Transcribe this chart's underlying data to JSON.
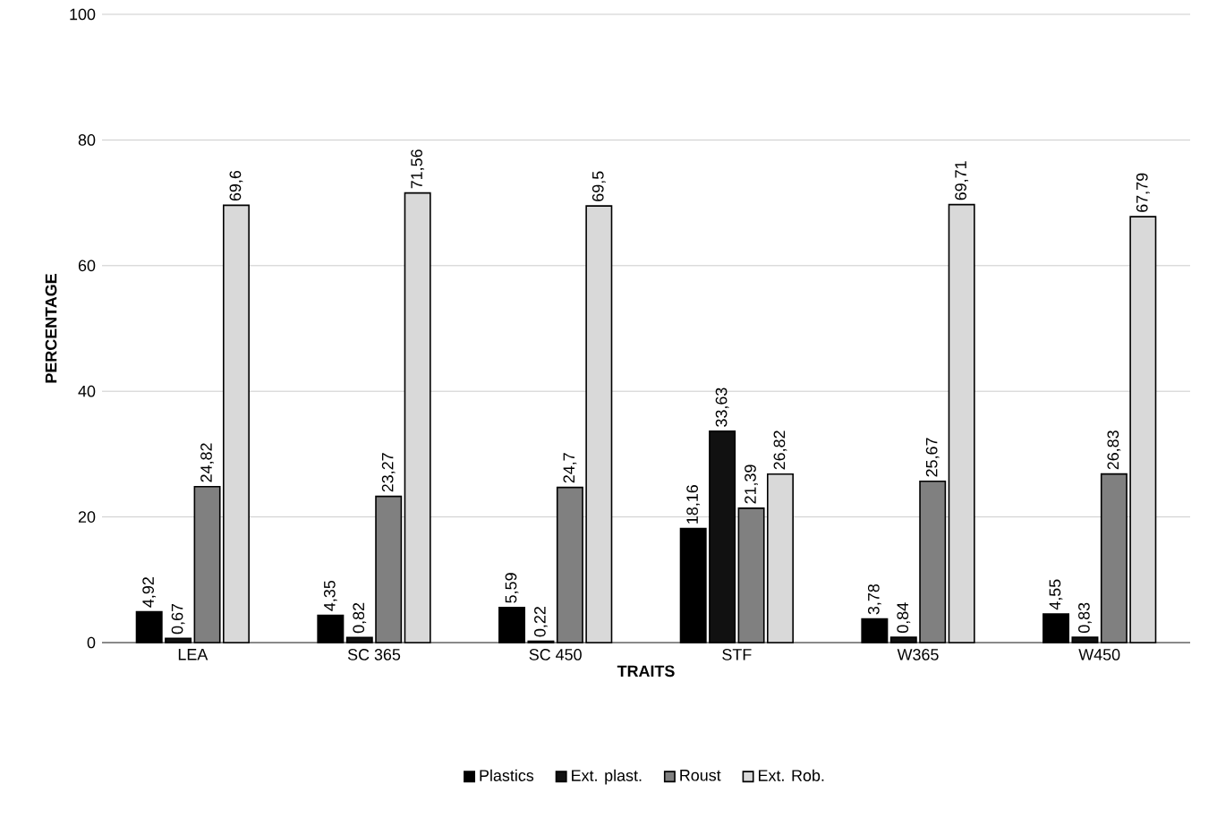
{
  "chart_data": {
    "type": "bar",
    "xlabel": "TRAITS",
    "ylabel": "PERCENTAGE",
    "categories": [
      "LEA",
      "SC 365",
      "SC 450",
      "STF",
      "W365",
      "W450"
    ],
    "series": [
      {
        "name": "Plastics",
        "color": "#000000",
        "values": [
          4.92,
          4.35,
          5.59,
          18.16,
          3.78,
          4.55
        ],
        "value_labels": [
          "4,92",
          "4,35",
          "5,59",
          "18,16",
          "3,78",
          "4,55"
        ]
      },
      {
        "name": "Ext. plast.",
        "color": "#111111",
        "values": [
          0.67,
          0.82,
          0.22,
          33.63,
          0.84,
          0.83
        ],
        "value_labels": [
          "0,67",
          "0,82",
          "0,22",
          "33,63",
          "0,84",
          "0,83"
        ]
      },
      {
        "name": "Roust",
        "color": "#808080",
        "values": [
          24.82,
          23.27,
          24.7,
          21.39,
          25.67,
          26.83
        ],
        "value_labels": [
          "24,82",
          "23,27",
          "24,7",
          "21,39",
          "25,67",
          "26,83"
        ]
      },
      {
        "name": "Ext. Rob.",
        "color": "#d9d9d9",
        "values": [
          69.6,
          71.56,
          69.5,
          26.82,
          69.71,
          67.79
        ],
        "value_labels": [
          "69,6",
          "71,56",
          "69,5",
          "26,82",
          "69,71",
          "67,79"
        ]
      }
    ],
    "ylim": [
      0,
      100
    ],
    "yticks": [
      0,
      20,
      40,
      60,
      80,
      100
    ],
    "grid": "y",
    "legend": "bottom"
  }
}
